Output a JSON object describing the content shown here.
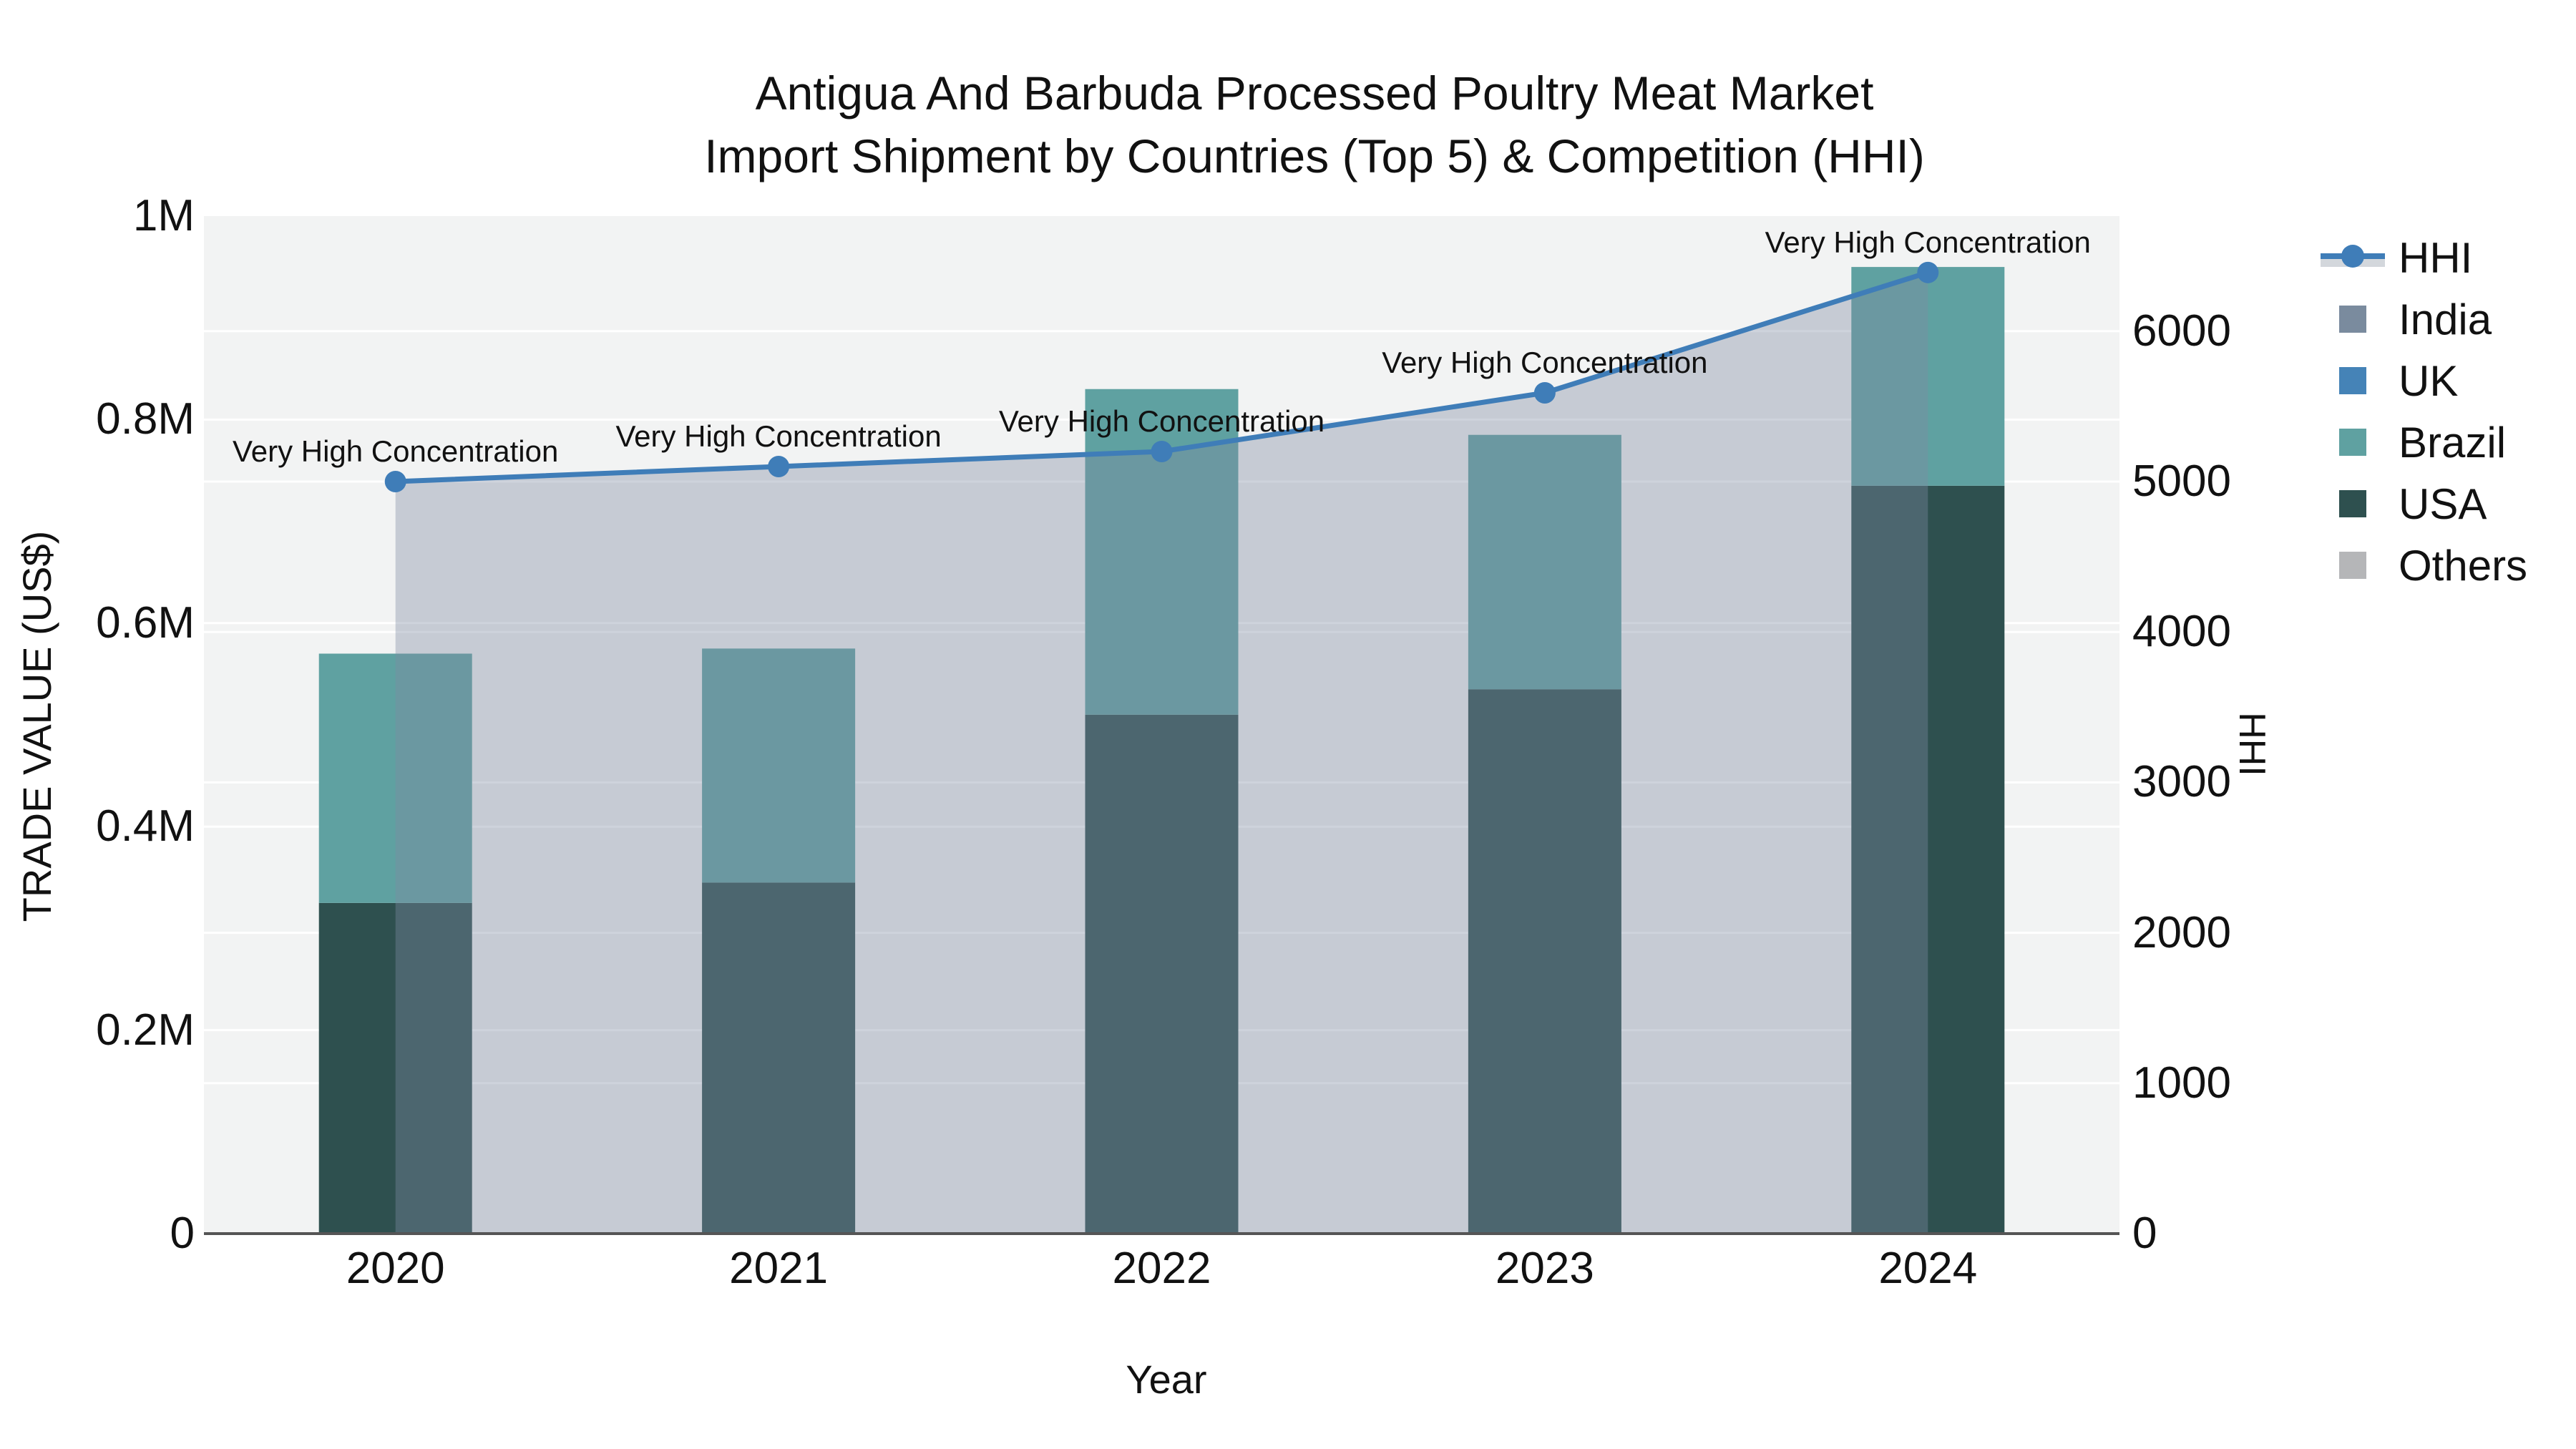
{
  "title": {
    "line1": "Antigua And Barbuda Processed Poultry Meat Market",
    "line2": "Import Shipment by Countries (Top 5) & Competition (HHI)"
  },
  "colors": {
    "plot_bg": "#f2f3f3",
    "gridline": "#ffffff",
    "axis_line": "#555555",
    "text": "#111111",
    "hhi_line": "#3f7db8",
    "hhi_area_fill": "rgba(125,140,163,0.38)",
    "legend_area_band": "#d3d7dc"
  },
  "axes": {
    "x": {
      "label": "Year",
      "categories": [
        "2020",
        "2021",
        "2022",
        "2023",
        "2024"
      ]
    },
    "y_left": {
      "label": "TRADE VALUE (US$)",
      "max": 1000000,
      "ticks": [
        {
          "label": "1M",
          "value": 1000000
        },
        {
          "label": "0.8M",
          "value": 800000
        },
        {
          "label": "0.6M",
          "value": 600000
        },
        {
          "label": "0.4M",
          "value": 400000
        },
        {
          "label": "0.2M",
          "value": 200000
        },
        {
          "label": "0",
          "value": 0
        }
      ]
    },
    "y_right": {
      "label": "HHI",
      "max": 6765,
      "ticks": [
        {
          "label": "6000",
          "value": 6000
        },
        {
          "label": "5000",
          "value": 5000
        },
        {
          "label": "4000",
          "value": 4000
        },
        {
          "label": "3000",
          "value": 3000
        },
        {
          "label": "2000",
          "value": 2000
        },
        {
          "label": "1000",
          "value": 1000
        },
        {
          "label": "0",
          "value": 0
        }
      ]
    }
  },
  "legend": [
    {
      "label": "HHI",
      "type": "line",
      "color": "#3f7db8"
    },
    {
      "label": "India",
      "type": "swatch",
      "color": "#7a8b9e"
    },
    {
      "label": "UK",
      "type": "swatch",
      "color": "#4583b7"
    },
    {
      "label": "Brazil",
      "type": "swatch",
      "color": "#5fa1a1"
    },
    {
      "label": "USA",
      "type": "swatch",
      "color": "#2e504f"
    },
    {
      "label": "Others",
      "type": "swatch",
      "color": "#b5b6b8"
    }
  ],
  "chart_data": {
    "type": "combo: stacked-bar (left axis) + line-with-area (right axis)",
    "categories": [
      "2020",
      "2021",
      "2022",
      "2023",
      "2024"
    ],
    "xlabel": "Year",
    "ylabel_left": "TRADE VALUE (US$)",
    "ylabel_right": "HHI",
    "ylim_left": [
      0,
      1000000
    ],
    "ylim_right": [
      0,
      6765
    ],
    "grid": true,
    "legend_position": "right",
    "bar_series": [
      {
        "name": "USA",
        "type": "bar",
        "axis": "left",
        "color": "#2e504f",
        "values": [
          325000,
          345000,
          510000,
          535000,
          735000
        ]
      },
      {
        "name": "Brazil",
        "type": "bar",
        "axis": "left",
        "color": "#5fa1a1",
        "values": [
          245000,
          230000,
          320000,
          250000,
          215000
        ]
      },
      {
        "name": "UK",
        "type": "bar",
        "axis": "left",
        "color": "#4583b7",
        "values": [
          0,
          0,
          0,
          0,
          0
        ]
      },
      {
        "name": "India",
        "type": "bar",
        "axis": "left",
        "color": "#7a8b9e",
        "values": [
          0,
          0,
          0,
          0,
          0
        ]
      },
      {
        "name": "Others",
        "type": "bar",
        "axis": "left",
        "color": "#b5b6b8",
        "values": [
          0,
          0,
          0,
          0,
          0
        ]
      }
    ],
    "line_series": {
      "name": "HHI",
      "type": "line+area",
      "axis": "right",
      "color": "#3f7db8",
      "values": [
        5000,
        5100,
        5200,
        5590,
        6390
      ],
      "point_annotations": [
        "Very High Concentration",
        "Very High Concentration",
        "Very High Concentration",
        "Very High Concentration",
        "Very High Concentration"
      ]
    }
  }
}
